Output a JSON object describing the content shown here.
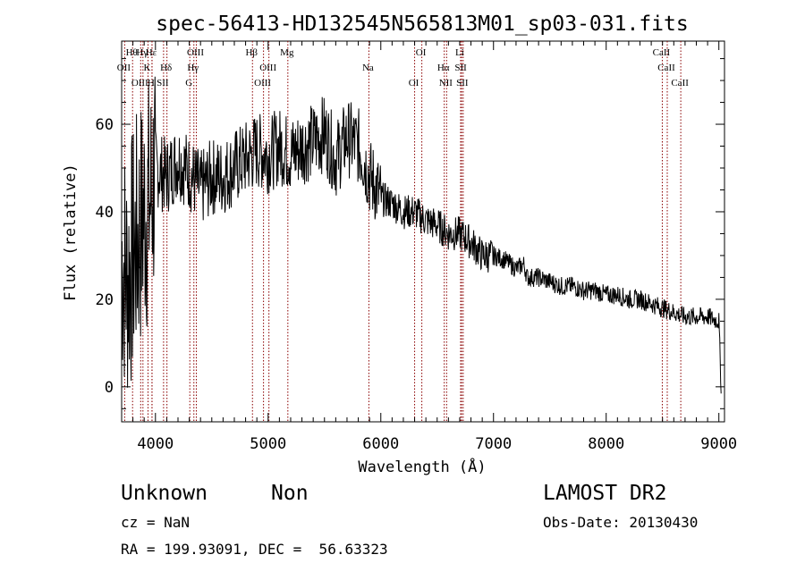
{
  "chart_data": {
    "type": "line",
    "title": "spec-56413-HD132545N565813M01_sp03-031.fits",
    "xlabel": "Wavelength (Å)",
    "ylabel": "Flux (relative)",
    "xlim": [
      3700,
      9050
    ],
    "ylim": [
      -8,
      79
    ],
    "x_ticks": [
      4000,
      5000,
      6000,
      7000,
      8000,
      9000
    ],
    "y_ticks": [
      0,
      20,
      40,
      60
    ],
    "grid": false,
    "line_color": "#000000",
    "marker_color": "#8b0000",
    "series": [
      {
        "x": [
          3700,
          3750,
          3800,
          3850,
          3900,
          3950,
          4000,
          4100,
          4200,
          4300,
          4400,
          4500,
          4600,
          4700,
          4800,
          4900,
          5000,
          5100,
          5200,
          5300,
          5400,
          5500,
          5600,
          5700,
          5800,
          5850,
          5900,
          5950,
          6000,
          6100,
          6200,
          6300,
          6350,
          6400,
          6500,
          6600,
          6700,
          6800,
          6900,
          7000,
          7100,
          7200,
          7270,
          7300,
          7400,
          7500,
          7600,
          7700,
          7800,
          7900,
          8000,
          8100,
          8200,
          8300,
          8400,
          8500,
          8600,
          8700,
          8800,
          8900,
          9000,
          9020
        ],
        "y": [
          30,
          25,
          30,
          35,
          40,
          42,
          50,
          48,
          52,
          49,
          45,
          48,
          48,
          50,
          52,
          54,
          53,
          55,
          53,
          55,
          56,
          58,
          52,
          57,
          55,
          52,
          48,
          46,
          43,
          42,
          40,
          40,
          39,
          38,
          37,
          35,
          35,
          33,
          30,
          30,
          29,
          27,
          28,
          25,
          25,
          24,
          23,
          23,
          22,
          22,
          21,
          21,
          20,
          20,
          19,
          18,
          17,
          16,
          16,
          16,
          15,
          0
        ]
      }
    ],
    "lines": [
      {
        "label": "Hθ",
        "x": 3797
      },
      {
        "label": "OII",
        "x": 3727
      },
      {
        "label": "OIII",
        "x": 3869
      },
      {
        "label": "Hε",
        "x": 3970
      },
      {
        "label": "K",
        "x": 3934
      },
      {
        "label": "H",
        "x": 3969
      },
      {
        "label": "Hγ",
        "x": 3889
      },
      {
        "label": "Hδ",
        "x": 4102
      },
      {
        "label": "SII",
        "x": 4072
      },
      {
        "label": "OIII",
        "x": 4363
      },
      {
        "label": "Hγ",
        "x": 4341
      },
      {
        "label": "G",
        "x": 4305
      },
      {
        "label": "Hβ",
        "x": 4861
      },
      {
        "label": "OIII",
        "x": 5007
      },
      {
        "label": "OIII",
        "x": 4959
      },
      {
        "label": "Mg",
        "x": 5175
      },
      {
        "label": "Na",
        "x": 5894
      },
      {
        "label": "OI",
        "x": 6300
      },
      {
        "label": "OI",
        "x": 6364
      },
      {
        "label": "Hα",
        "x": 6563
      },
      {
        "label": "NII",
        "x": 6584
      },
      {
        "label": "Li",
        "x": 6708
      },
      {
        "label": "SII",
        "x": 6717
      },
      {
        "label": "SII",
        "x": 6731
      },
      {
        "label": "CaII",
        "x": 8498
      },
      {
        "label": "CaII",
        "x": 8542
      },
      {
        "label": "CaII",
        "x": 8662
      }
    ]
  },
  "info": {
    "class": "Unknown",
    "subclass": "Non",
    "survey": "LAMOST DR2",
    "cz": "cz = NaN",
    "obs_date": "Obs-Date: 20130430",
    "coords": "RA = 199.93091, DEC =  56.63323"
  }
}
